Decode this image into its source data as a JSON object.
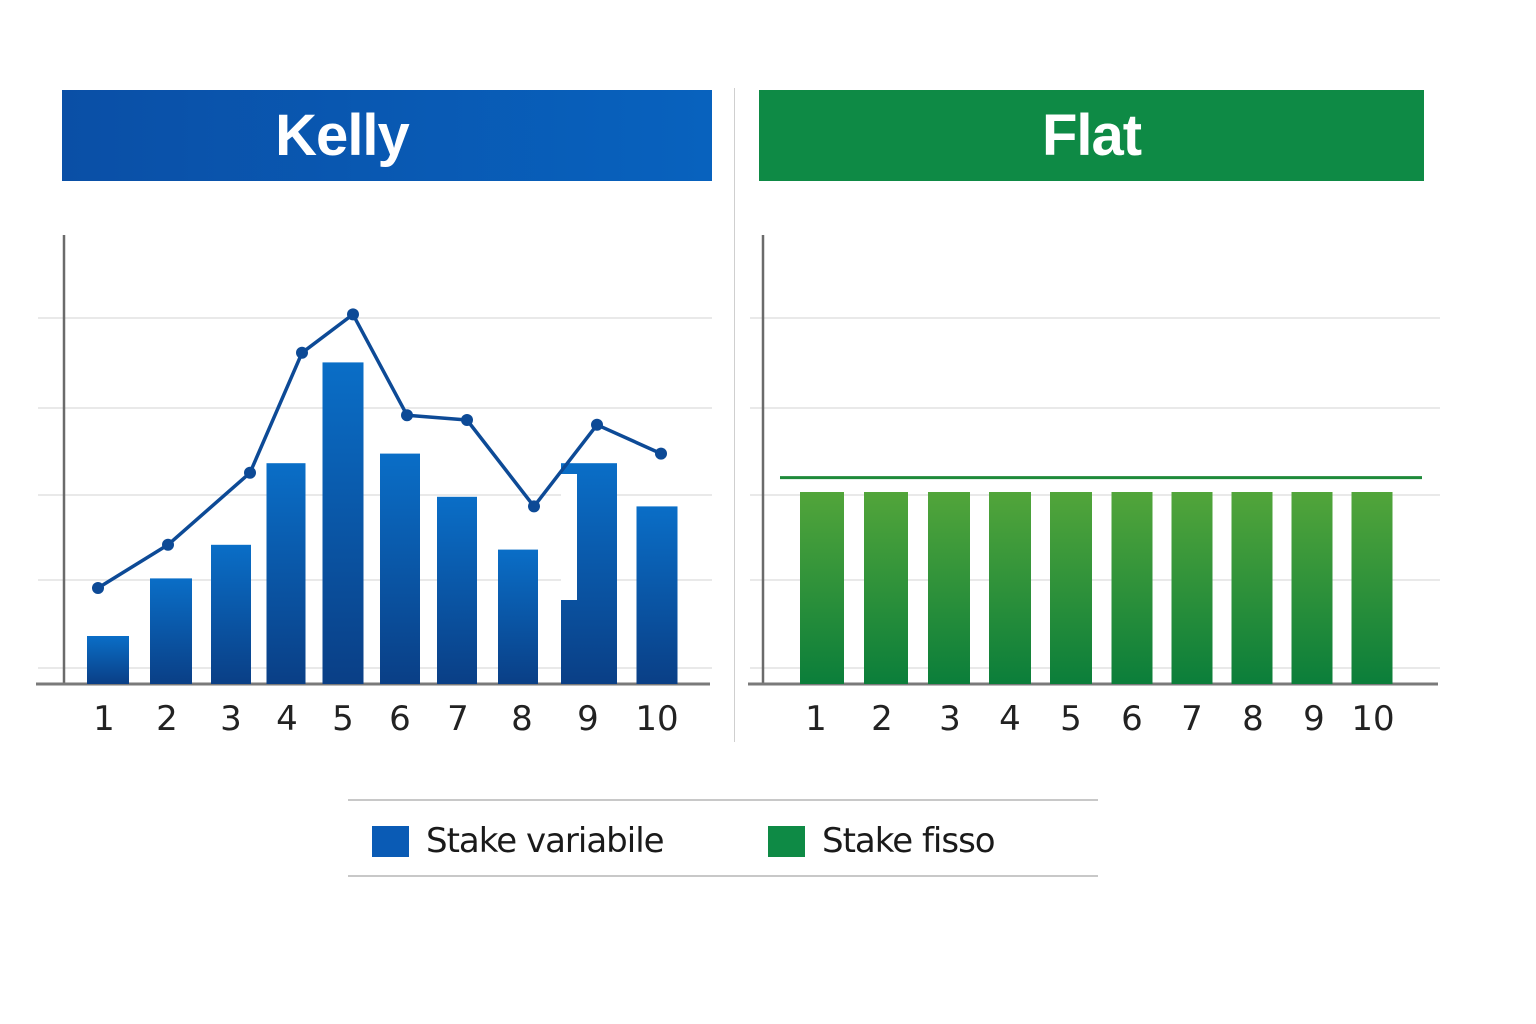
{
  "chart_data": [
    {
      "type": "bar",
      "title": "Kelly",
      "categories": [
        "1",
        "2",
        "3",
        "4",
        "5",
        "6",
        "7",
        "8",
        "9",
        "10"
      ],
      "series": [
        {
          "name": "Stake variabile",
          "kind": "bar",
          "color": "#0a5bb5",
          "values": [
            1.0,
            2.2,
            2.9,
            4.6,
            6.7,
            4.8,
            3.9,
            2.8,
            4.6,
            3.7
          ]
        },
        {
          "name": "Stake variabile (trend)",
          "kind": "line",
          "color": "#0d4a96",
          "values": [
            2.0,
            2.9,
            4.4,
            6.9,
            7.7,
            5.6,
            5.5,
            3.7,
            5.4,
            4.8
          ]
        }
      ],
      "xlabel": "",
      "ylabel": "",
      "ylim": [
        0,
        10
      ],
      "grid": true,
      "legend_position": "bottom"
    },
    {
      "type": "bar",
      "title": "Flat",
      "categories": [
        "1",
        "2",
        "3",
        "4",
        "5",
        "6",
        "7",
        "8",
        "9",
        "10"
      ],
      "series": [
        {
          "name": "Stake fisso",
          "kind": "bar",
          "color": "#2f9a3c",
          "values": [
            4.0,
            4.0,
            4.0,
            4.0,
            4.0,
            4.0,
            4.0,
            4.0,
            4.0,
            4.0
          ]
        },
        {
          "name": "Stake fisso (reference)",
          "kind": "line",
          "color": "#1e8a3a",
          "values": [
            4.3,
            4.3,
            4.3,
            4.3,
            4.3,
            4.3,
            4.3,
            4.3,
            4.3,
            4.3
          ]
        }
      ],
      "xlabel": "",
      "ylabel": "",
      "ylim": [
        0,
        10
      ],
      "grid": true,
      "legend_position": "bottom"
    }
  ],
  "panels": {
    "kelly": {
      "title": "Kelly",
      "color": "#0a57b0"
    },
    "flat": {
      "title": "Flat",
      "color": "#0e8a45"
    }
  },
  "legend": [
    {
      "label": "Stake variabile",
      "color": "#0a5bb5"
    },
    {
      "label": "Stake fisso",
      "color": "#0e8a45"
    }
  ],
  "x_ticks": [
    "1",
    "2",
    "3",
    "4",
    "5",
    "6",
    "7",
    "8",
    "9",
    "10"
  ]
}
